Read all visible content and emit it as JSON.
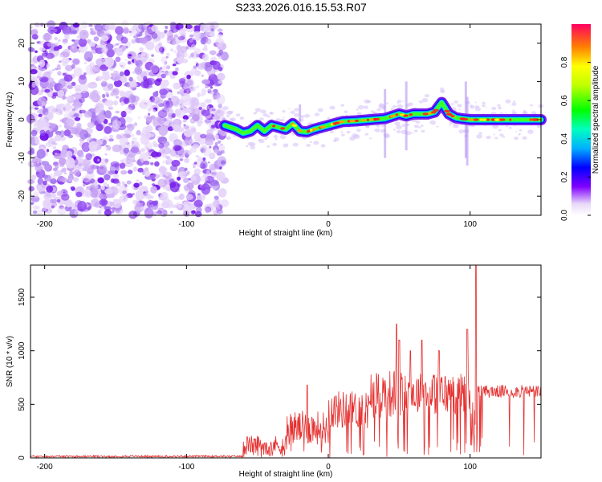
{
  "title": "S233.2026.016.15.53.R07",
  "chart_data": [
    {
      "type": "heatmap",
      "xlabel": "Height of straight line (km)",
      "ylabel": "Frequency (Hz)",
      "xlim": [
        -210,
        150
      ],
      "ylim": [
        -25,
        25
      ],
      "xticks": [
        -200,
        -100,
        0,
        100
      ],
      "yticks": [
        -20,
        -10,
        0,
        10,
        20
      ],
      "colorbar": {
        "label": "Normalized spectral amplitude",
        "range": [
          0,
          1
        ],
        "ticks": [
          0.0,
          0.2,
          0.4,
          0.6,
          0.8
        ]
      },
      "noise_region_x": [
        -210,
        -73
      ],
      "ridge": {
        "description": "dominant frequency trace",
        "x": [
          -73,
          -65,
          -60,
          -55,
          -50,
          -45,
          -40,
          -35,
          -30,
          -25,
          -20,
          -15,
          -10,
          -5,
          0,
          10,
          20,
          30,
          40,
          50,
          55,
          60,
          70,
          75,
          80,
          85,
          90,
          95,
          100,
          105,
          110,
          120,
          130,
          140,
          150
        ],
        "y": [
          -1.5,
          -2.5,
          -3.5,
          -3.0,
          -1.5,
          -3.0,
          -1.5,
          -2.0,
          -2.5,
          -1.0,
          -3.0,
          -3.2,
          -2.5,
          -2.0,
          -1.5,
          -0.5,
          -0.3,
          0.0,
          0.3,
          1.5,
          1.0,
          1.5,
          1.5,
          2.0,
          4.5,
          1.5,
          0.5,
          0.2,
          0.0,
          0.0,
          0.0,
          0.0,
          0.0,
          0.0,
          0.0
        ]
      }
    },
    {
      "type": "line",
      "xlabel": "Height of straight line (km)",
      "ylabel": "SNR (10 * v/v)",
      "xlim": [
        -210,
        150
      ],
      "ylim": [
        0,
        1800
      ],
      "xticks": [
        -200,
        -100,
        0,
        100
      ],
      "yticks": [
        0,
        500,
        1000,
        1500
      ],
      "color": "#e53030",
      "segments": [
        {
          "x0": -210,
          "x1": -60,
          "base": 15,
          "noise": 8
        },
        {
          "x0": -60,
          "x1": -30,
          "base": 120,
          "noise": 90
        },
        {
          "x0": -30,
          "x1": 0,
          "base": 280,
          "noise": 160
        },
        {
          "x0": 0,
          "x1": 30,
          "base": 450,
          "noise": 180
        },
        {
          "x0": 30,
          "x1": 60,
          "base": 600,
          "noise": 230
        },
        {
          "x0": 60,
          "x1": 100,
          "base": 600,
          "noise": 200
        },
        {
          "x0": 100,
          "x1": 105,
          "base": 300,
          "noise": 250
        },
        {
          "x0": 105,
          "x1": 150,
          "base": 620,
          "noise": 60
        }
      ],
      "peaks": [
        {
          "x": -15,
          "y": 680
        },
        {
          "x": 48,
          "y": 1250
        },
        {
          "x": 50,
          "y": 1100
        },
        {
          "x": 58,
          "y": 1000
        },
        {
          "x": 66,
          "y": 1100
        },
        {
          "x": 78,
          "y": 1000
        },
        {
          "x": 98,
          "y": 1200
        },
        {
          "x": 104,
          "y": 1800
        }
      ]
    }
  ]
}
